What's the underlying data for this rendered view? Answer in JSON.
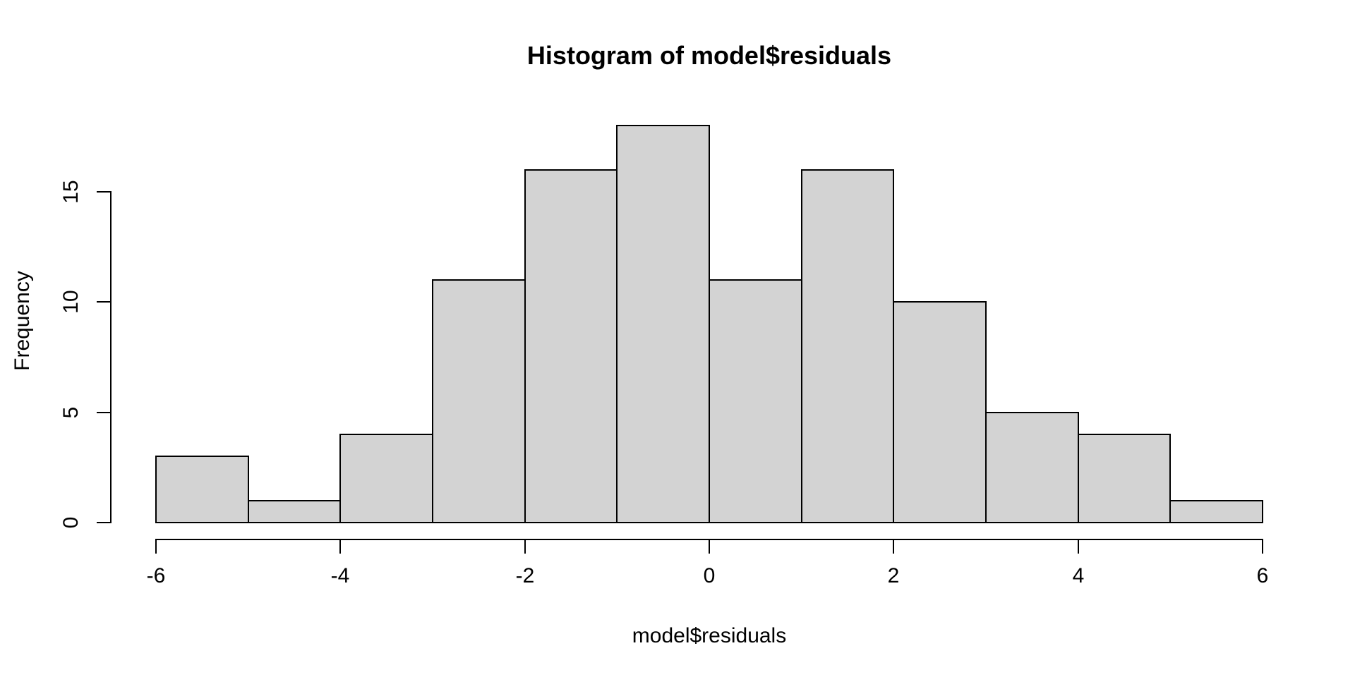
{
  "chart_data": {
    "type": "bar",
    "subtype": "histogram",
    "title": "Histogram of model$residuals",
    "xlabel": "model$residuals",
    "ylabel": "Frequency",
    "bin_edges": [
      -6,
      -5,
      -4,
      -3,
      -2,
      -1,
      0,
      1,
      2,
      3,
      4,
      5,
      6
    ],
    "counts": [
      3,
      1,
      4,
      11,
      16,
      18,
      11,
      16,
      10,
      5,
      4,
      1
    ],
    "x_ticks": [
      -6,
      -4,
      -2,
      0,
      2,
      4,
      6
    ],
    "y_ticks": [
      0,
      5,
      10,
      15
    ],
    "xlim": [
      -6,
      6
    ],
    "ylim": [
      0,
      18
    ],
    "grid": false,
    "legend": null,
    "colors": {
      "bar_fill": "#d3d3d3",
      "bar_border": "#000000",
      "axis": "#000000",
      "text": "#000000",
      "background": "#ffffff"
    }
  }
}
